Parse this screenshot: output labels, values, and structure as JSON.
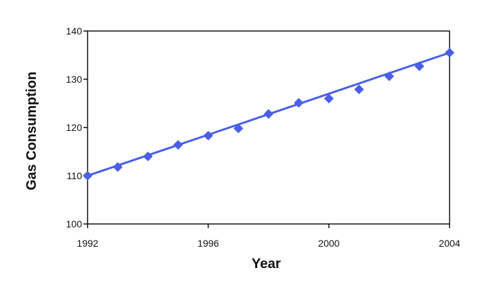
{
  "chart_data": {
    "type": "line",
    "title": "",
    "xlabel": "Year",
    "ylabel": "Gas Consumption",
    "xlim": [
      1992,
      2004
    ],
    "ylim": [
      100,
      140
    ],
    "xticks": [
      1992,
      1996,
      2000,
      2004
    ],
    "yticks": [
      100,
      110,
      120,
      130,
      140
    ],
    "grid": false,
    "legend": "none",
    "series": [
      {
        "color": "#4a5ee8",
        "x": [
          1992,
          1993,
          1994,
          1995,
          1996,
          1997,
          1998,
          1999,
          2000,
          2001,
          2002,
          2003,
          2004
        ],
        "y": [
          110.0,
          111.8,
          114.0,
          116.4,
          118.3,
          119.8,
          122.8,
          125.1,
          126.0,
          127.9,
          130.6,
          132.7,
          135.5
        ]
      }
    ],
    "fit_line": {
      "color": "#4a5ee8",
      "x": [
        1992,
        2004
      ],
      "y": [
        110.0,
        135.5
      ]
    }
  }
}
